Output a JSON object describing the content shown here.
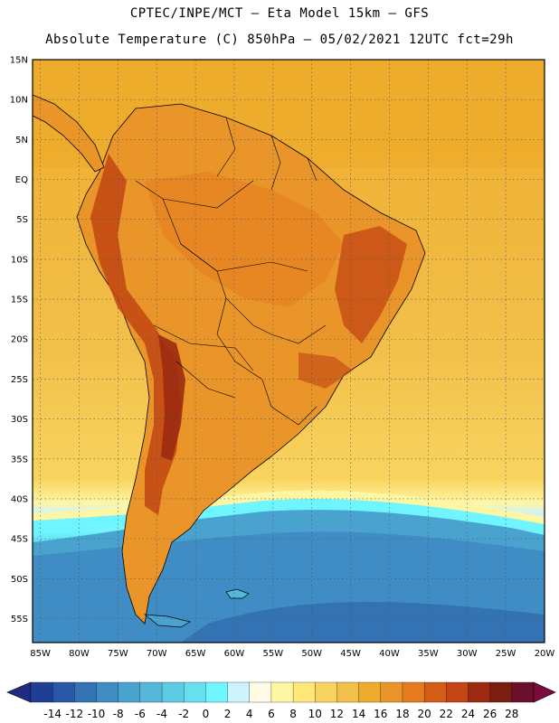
{
  "header": {
    "title_line1": "CPTEC/INPE/MCT –  Eta Model 15km – GFS",
    "title_line2": "Absolute Temperature (C) 850hPa – 05/02/2021 12UTC fct=29h"
  },
  "map": {
    "lat_labels": [
      "15N",
      "10N",
      "5N",
      "EQ",
      "5S",
      "10S",
      "15S",
      "20S",
      "25S",
      "30S",
      "35S",
      "40S",
      "45S",
      "50S",
      "55S"
    ],
    "lon_labels": [
      "85W",
      "80W",
      "75W",
      "70W",
      "65W",
      "60W",
      "55W",
      "50W",
      "45W",
      "40W",
      "35W",
      "30W",
      "25W",
      "20W"
    ],
    "lat_range": [
      15,
      -58
    ],
    "lon_range": [
      -86,
      -20
    ],
    "grid": "dotted"
  },
  "colorbar": {
    "ticks": [
      "-14",
      "-12",
      "-10",
      "-8",
      "-6",
      "-4",
      "-2",
      "0",
      "2",
      "4",
      "6",
      "8",
      "10",
      "12",
      "14",
      "16",
      "18",
      "20",
      "22",
      "24",
      "26",
      "28"
    ],
    "colors": [
      "#1f3f94",
      "#2a58a6",
      "#3372b3",
      "#3f8dc4",
      "#4aa3cf",
      "#55b7da",
      "#5ccbe4",
      "#64e0ee",
      "#6ff5ff",
      "#cdf3ff",
      "#fffbe4",
      "#fff6a4",
      "#ffe77a",
      "#f8d45f",
      "#f2c04a",
      "#eeab2c",
      "#e9952a",
      "#e67a1e",
      "#d45c14",
      "#c24513",
      "#9c2a10",
      "#7c1d12",
      "#6b0f2a"
    ],
    "under_color": "#1f2a80",
    "over_color": "#7d0a3c"
  }
}
